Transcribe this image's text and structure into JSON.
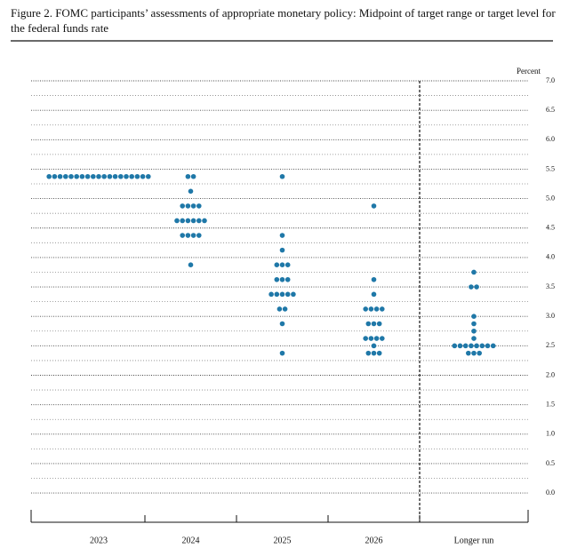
{
  "chart_data": {
    "type": "dot",
    "title": "Figure 2.  FOMC participants’ assessments of appropriate monetary policy: Midpoint of target range or target level for the federal funds rate",
    "y_label": "Percent",
    "color": "#1f78a8",
    "columns": [
      {
        "label": "2023",
        "values": [
          5.375,
          5.375,
          5.375,
          5.375,
          5.375,
          5.375,
          5.375,
          5.375,
          5.375,
          5.375,
          5.375,
          5.375,
          5.375,
          5.375,
          5.375,
          5.375,
          5.375,
          5.375,
          5.375
        ]
      },
      {
        "label": "2024",
        "values": [
          5.375,
          5.375,
          5.125,
          4.875,
          4.875,
          4.875,
          4.875,
          4.625,
          4.625,
          4.625,
          4.625,
          4.625,
          4.625,
          4.375,
          4.375,
          4.375,
          4.375,
          3.875
        ]
      },
      {
        "label": "2025",
        "values": [
          5.375,
          4.375,
          4.125,
          3.875,
          3.875,
          3.875,
          3.625,
          3.625,
          3.625,
          3.375,
          3.375,
          3.375,
          3.375,
          3.375,
          3.125,
          3.125,
          2.875,
          2.375
        ]
      },
      {
        "label": "2026",
        "values": [
          4.875,
          3.625,
          3.375,
          3.125,
          3.125,
          3.125,
          3.125,
          2.875,
          2.875,
          2.875,
          2.625,
          2.625,
          2.625,
          2.625,
          2.5,
          2.375,
          2.375,
          2.375
        ]
      },
      {
        "label": "Longer run",
        "values": [
          3.75,
          3.5,
          3.5,
          3.0,
          2.875,
          2.75,
          2.625,
          2.5,
          2.5,
          2.5,
          2.5,
          2.5,
          2.5,
          2.5,
          2.5,
          2.375,
          2.375,
          2.375
        ]
      }
    ],
    "ylim": [
      -0.3,
      7.0
    ],
    "yticks": [
      {
        "value": 0,
        "label": "0.0"
      },
      {
        "value": 0.5,
        "label": "0.5"
      },
      {
        "value": 1,
        "label": "1.0"
      },
      {
        "value": 1.5,
        "label": "1.5"
      },
      {
        "value": 2,
        "label": "2.0"
      },
      {
        "value": 2.5,
        "label": "2.5"
      },
      {
        "value": 3,
        "label": "3.0"
      },
      {
        "value": 3.5,
        "label": "3.5"
      },
      {
        "value": 4,
        "label": "4.0"
      },
      {
        "value": 4.5,
        "label": "4.5"
      },
      {
        "value": 5,
        "label": "5.0"
      },
      {
        "value": 5.5,
        "label": "5.5"
      },
      {
        "value": 6,
        "label": "6.0"
      },
      {
        "value": 6.5,
        "label": "6.5"
      },
      {
        "value": 7,
        "label": "7.0"
      }
    ],
    "yminor": [
      0.25,
      0.75,
      1.25,
      1.75,
      2.25,
      2.75,
      3.25,
      3.75,
      4.25,
      4.75,
      5.25,
      5.75,
      6.25,
      6.75
    ]
  }
}
